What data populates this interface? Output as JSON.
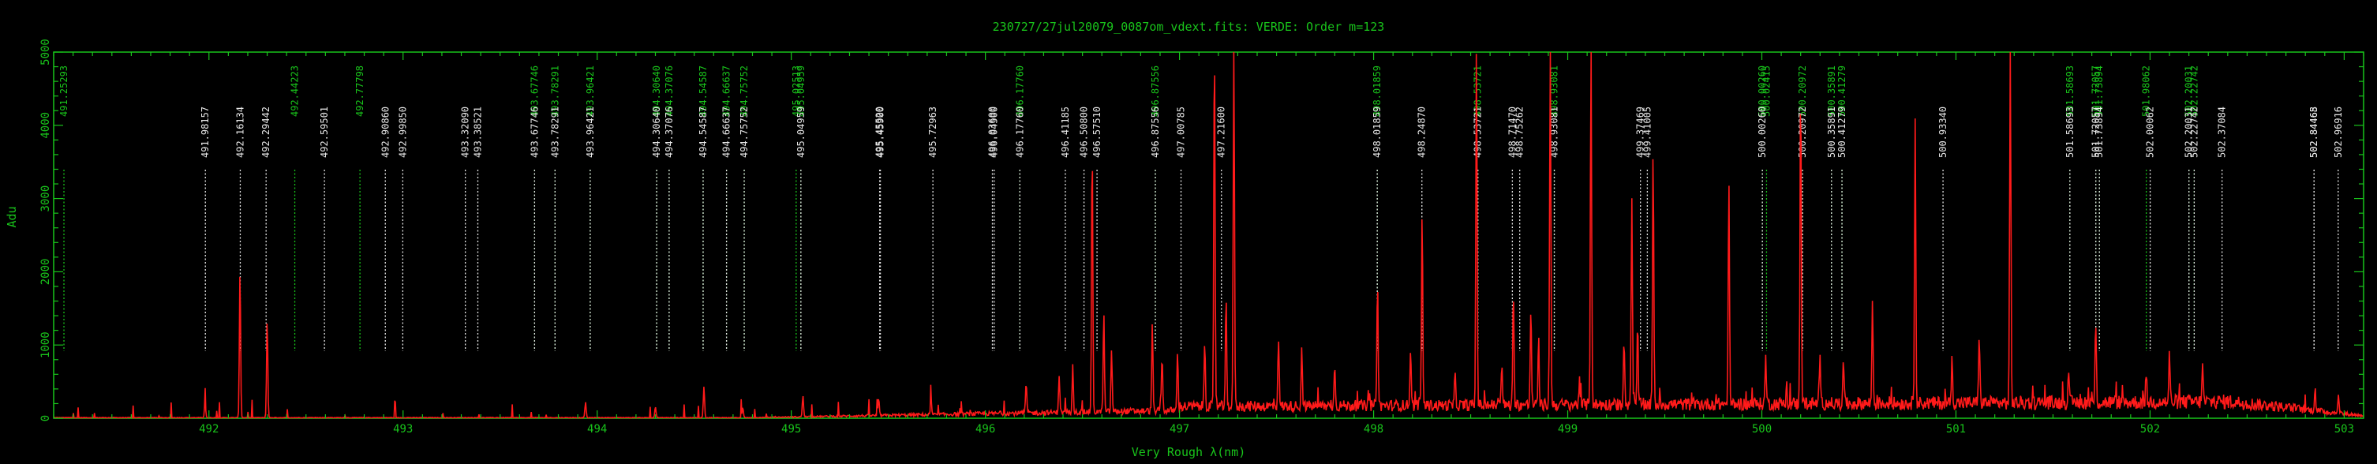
{
  "chart_data": {
    "type": "line",
    "title": "230727/27jul20079_0087om_vdext.fits: VERDE: Order m=123",
    "xlabel": "Very Rough λ(nm)",
    "ylabel": "Adu",
    "xlim": [
      491.2,
      503.1
    ],
    "ylim": [
      0,
      5000
    ],
    "xticks": [
      492,
      493,
      494,
      495,
      496,
      497,
      498,
      499,
      500,
      501,
      502,
      503
    ],
    "yticks": [
      0,
      1000,
      2000,
      3000,
      4000,
      5000
    ],
    "grid": false,
    "series": [
      {
        "color": "#ff1a1a",
        "peaks": [
          [
            491.98,
            220
          ],
          [
            492.16,
            2020
          ],
          [
            492.3,
            1350
          ],
          [
            493.94,
            210
          ],
          [
            494.3,
            150
          ],
          [
            494.55,
            430
          ],
          [
            494.75,
            140
          ],
          [
            495.06,
            290
          ],
          [
            495.45,
            230
          ],
          [
            495.72,
            180
          ],
          [
            496.21,
            420
          ],
          [
            496.38,
            520
          ],
          [
            496.45,
            660
          ],
          [
            496.55,
            3650
          ],
          [
            496.61,
            1350
          ],
          [
            496.65,
            820
          ],
          [
            496.86,
            1160
          ],
          [
            496.91,
            760
          ],
          [
            496.99,
            780
          ],
          [
            497.13,
            900
          ],
          [
            497.18,
            5000
          ],
          [
            497.24,
            1450
          ],
          [
            497.28,
            5000
          ],
          [
            497.51,
            960
          ],
          [
            497.63,
            780
          ],
          [
            497.8,
            560
          ],
          [
            498.02,
            1720
          ],
          [
            498.19,
            780
          ],
          [
            498.25,
            2620
          ],
          [
            498.42,
            400
          ],
          [
            498.53,
            5000
          ],
          [
            498.66,
            560
          ],
          [
            498.72,
            1620
          ],
          [
            498.81,
            1320
          ],
          [
            498.85,
            880
          ],
          [
            498.91,
            5000
          ],
          [
            499.06,
            320
          ],
          [
            499.12,
            5000
          ],
          [
            499.29,
            950
          ],
          [
            499.33,
            2850
          ],
          [
            499.36,
            1050
          ],
          [
            499.44,
            3450
          ],
          [
            499.83,
            3050
          ],
          [
            500.02,
            650
          ],
          [
            500.2,
            4500
          ],
          [
            500.3,
            580
          ],
          [
            500.42,
            660
          ],
          [
            500.57,
            1380
          ],
          [
            500.79,
            3960
          ],
          [
            500.98,
            600
          ],
          [
            501.12,
            980
          ],
          [
            501.28,
            5000
          ],
          [
            501.58,
            380
          ],
          [
            501.72,
            1080
          ],
          [
            501.98,
            380
          ],
          [
            502.1,
            650
          ],
          [
            502.27,
            520
          ],
          [
            502.85,
            320
          ],
          [
            502.97,
            250
          ]
        ]
      }
    ],
    "reference_lines": {
      "white": [
        491.98157,
        492.16134,
        492.29442,
        492.59501,
        492.9086,
        492.9985,
        493.3209,
        493.38521,
        493.67746,
        493.78291,
        493.96421,
        494.3064,
        494.37076,
        494.54587,
        494.66637,
        494.75752,
        495.04959,
        495.4552,
        495.459,
        495.72963,
        496.036,
        496.045,
        496.1776,
        496.41185,
        496.508,
        496.5751,
        496.87556,
        497.00785,
        497.216,
        498.01859,
        498.2487,
        498.53721,
        498.7147,
        498.75262,
        498.93081,
        499.37469,
        499.41005,
        500.0026,
        500.20972,
        500.35891,
        500.41279,
        500.9334,
        501.58693,
        501.72057,
        501.73894,
        502.00062,
        502.20031,
        502.22742,
        502.37084,
        502.84465,
        502.84468,
        502.96916
      ],
      "green": [
        491.25293,
        492.44223,
        492.77798,
        493.67746,
        493.78291,
        493.96421,
        494.3064,
        494.37076,
        494.54587,
        494.66637,
        494.75752,
        495.02513,
        495.04959,
        496.1776,
        496.87556,
        498.01859,
        498.53721,
        498.93081,
        500.0026,
        500.02415,
        500.20972,
        500.35891,
        500.41279,
        501.58693,
        501.72057,
        501.73894,
        501.98062,
        502.20031,
        502.22742
      ]
    }
  }
}
